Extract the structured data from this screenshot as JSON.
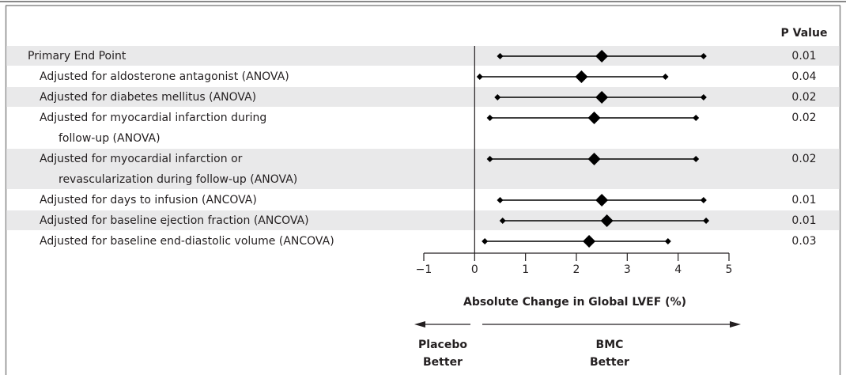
{
  "chart_data": {
    "type": "forest",
    "categories": [
      [
        "Primary End Point"
      ],
      [
        "Adjusted for aldosterone antagonist (ANOVA)"
      ],
      [
        "Adjusted for diabetes mellitus (ANOVA)"
      ],
      [
        "Adjusted for myocardial infarction during",
        "follow-up (ANOVA)"
      ],
      [
        "Adjusted for myocardial infarction or",
        "revascularization during follow-up (ANOVA)"
      ],
      [
        "Adjusted for days to infusion (ANCOVA)"
      ],
      [
        "Adjusted for baseline ejection fraction (ANCOVA)"
      ],
      [
        "Adjusted for baseline end-diastolic volume (ANCOVA)"
      ]
    ],
    "values": [
      2.5,
      2.1,
      2.5,
      2.35,
      2.35,
      2.5,
      2.6,
      2.25
    ],
    "lower": [
      0.5,
      0.1,
      0.45,
      0.3,
      0.3,
      0.5,
      0.55,
      0.2
    ],
    "upper": [
      4.5,
      3.75,
      4.5,
      4.35,
      4.35,
      4.5,
      4.55,
      3.8
    ],
    "p_value_header": "P Value",
    "p_values": [
      0.01,
      0.04,
      0.02,
      0.02,
      0.02,
      0.01,
      0.01,
      0.03
    ],
    "xlabel": "Absolute Change in Global LVEF (%)",
    "xlim": [
      -1,
      5
    ],
    "xticks": [
      {
        "value": -1,
        "label": "−1"
      },
      0,
      1,
      2,
      3,
      4,
      5
    ],
    "left_label": [
      "Placebo",
      "Better"
    ],
    "right_label": [
      "BMC",
      "Better"
    ],
    "color": "#000000"
  }
}
